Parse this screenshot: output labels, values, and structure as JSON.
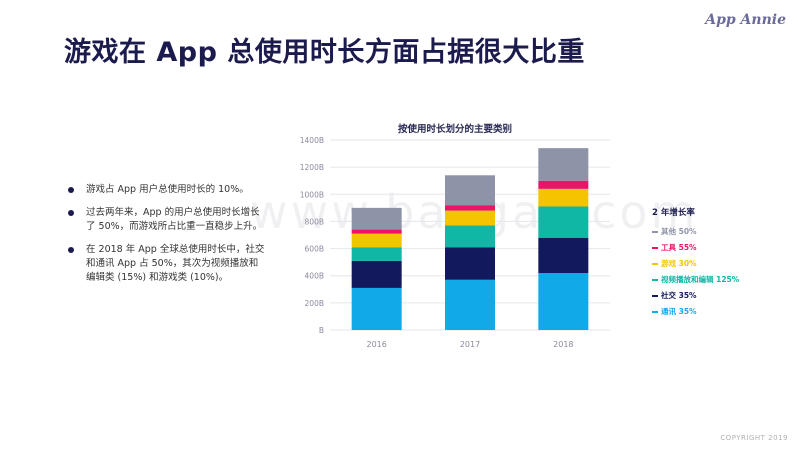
{
  "header": {
    "title": "游戏在 App 总使用时长方面占据很大比重",
    "logo": "App Annie"
  },
  "bullets": [
    "游戏占 App 用户总使用时长的 10%。",
    "过去两年来，App 的用户总使用时长增长了 50%，而游戏所占比重一直稳步上升。",
    "在 2018 年 App 全球总使用时长中，社交和通讯 App 占 50%，其次为视频播放和编辑类 (15%) 和游戏类 (10%)。"
  ],
  "watermark": "www.baogao.com",
  "legend": {
    "title": "2 年增长率",
    "items": [
      {
        "label": "其他 50%",
        "color": "#8e93a8"
      },
      {
        "label": "工具 55%",
        "color": "#ea1569"
      },
      {
        "label": "游戏 30%",
        "color": "#f5c400"
      },
      {
        "label": "视频播放和编辑 125%",
        "color": "#0fb7a4"
      },
      {
        "label": "社交 35%",
        "color": "#12195c"
      },
      {
        "label": "通讯 35%",
        "color": "#12a9e8"
      }
    ]
  },
  "chart_data": {
    "type": "bar",
    "stacked": true,
    "title": "按使用时长划分的主要类别",
    "categories": [
      "2016",
      "2017",
      "2018"
    ],
    "y_ticks": [
      "B",
      "200B",
      "400B",
      "600B",
      "800B",
      "1000B",
      "1200B",
      "1400B"
    ],
    "ylim": [
      0,
      1400
    ],
    "grid": true,
    "series": [
      {
        "name": "通讯",
        "color": "#12a9e8",
        "values": [
          310,
          370,
          420
        ]
      },
      {
        "name": "社交",
        "color": "#12195c",
        "values": [
          200,
          240,
          260
        ]
      },
      {
        "name": "视频播放和编辑",
        "color": "#0fb7a4",
        "values": [
          100,
          160,
          230
        ]
      },
      {
        "name": "游戏",
        "color": "#f5c400",
        "values": [
          100,
          110,
          130
        ]
      },
      {
        "name": "工具",
        "color": "#ea1569",
        "values": [
          30,
          40,
          60
        ]
      },
      {
        "name": "其他",
        "color": "#8e93a8",
        "values": [
          160,
          220,
          240
        ]
      }
    ]
  },
  "footer": {
    "copyright": "COPYRIGHT 2019"
  }
}
